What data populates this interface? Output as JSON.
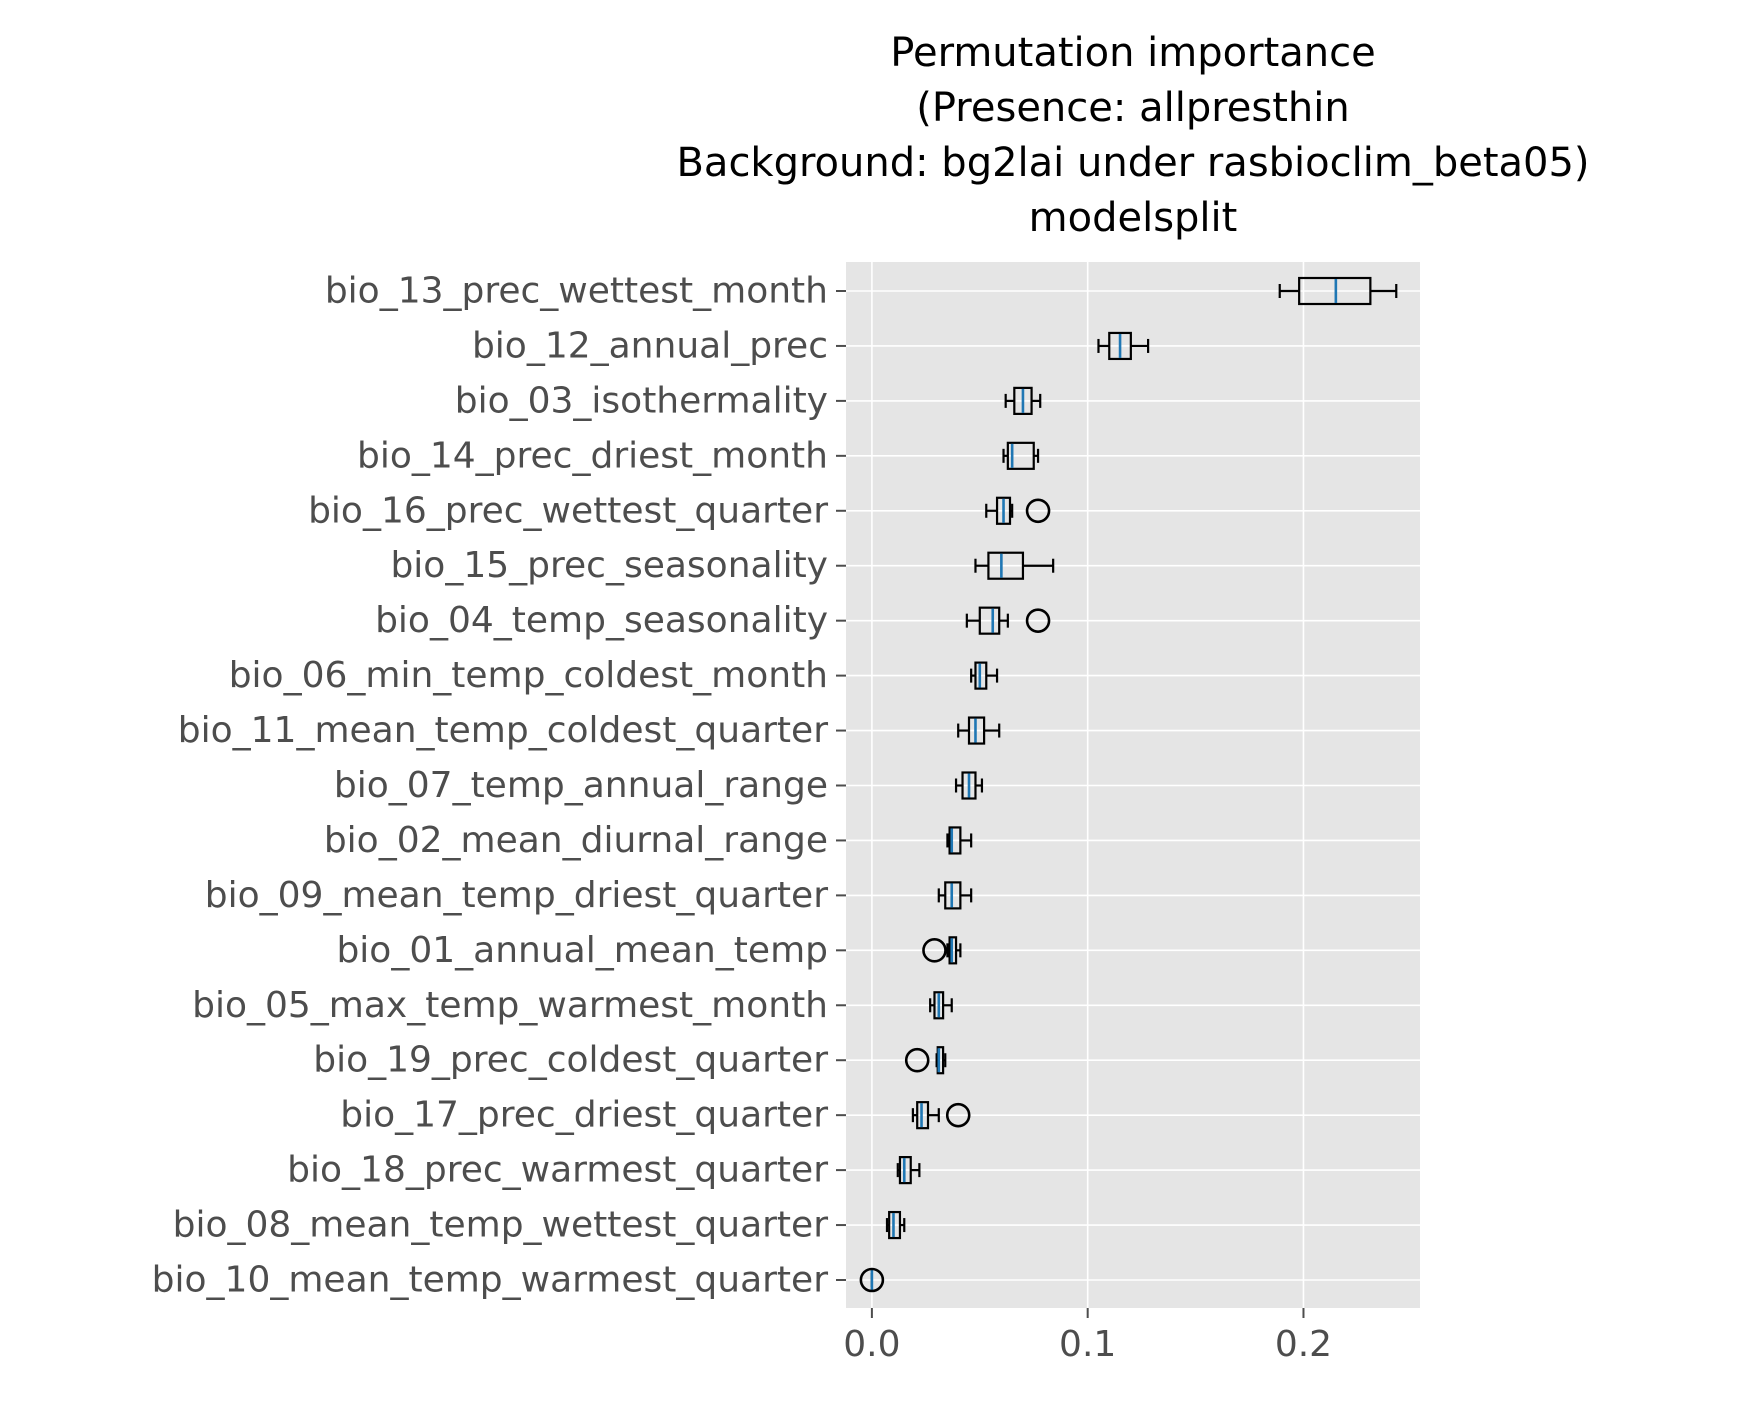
{
  "chart_data": {
    "type": "box",
    "orientation": "horizontal",
    "title": [
      "Permutation importance",
      "(Presence: allpresthin",
      "Background: bg2lai under rasbioclim_beta05)",
      "modelsplit"
    ],
    "xlabel": "",
    "ylabel": "",
    "xlim": [
      -0.012,
      0.254
    ],
    "xticks": [
      0.0,
      0.1,
      0.2
    ],
    "xtick_labels": [
      "0.0",
      "0.1",
      "0.2"
    ],
    "grid": true,
    "style": "ggplot",
    "colors": {
      "axes_background": "#e5e5e5",
      "grid": "#ffffff",
      "box_edge": "#000000",
      "median": "#1f77b4",
      "tick_label": "#4d4d4d"
    },
    "series": [
      {
        "name": "bio_13_prec_wettest_month",
        "whislo": 0.189,
        "q1": 0.198,
        "med": 0.215,
        "q3": 0.231,
        "whishi": 0.243,
        "fliers": []
      },
      {
        "name": "bio_12_annual_prec",
        "whislo": 0.105,
        "q1": 0.11,
        "med": 0.115,
        "q3": 0.12,
        "whishi": 0.128,
        "fliers": []
      },
      {
        "name": "bio_03_isothermality",
        "whislo": 0.062,
        "q1": 0.066,
        "med": 0.07,
        "q3": 0.074,
        "whishi": 0.078,
        "fliers": []
      },
      {
        "name": "bio_14_prec_driest_month",
        "whislo": 0.061,
        "q1": 0.063,
        "med": 0.065,
        "q3": 0.075,
        "whishi": 0.077,
        "fliers": []
      },
      {
        "name": "bio_16_prec_wettest_quarter",
        "whislo": 0.053,
        "q1": 0.058,
        "med": 0.061,
        "q3": 0.064,
        "whishi": 0.065,
        "fliers": [
          0.077
        ]
      },
      {
        "name": "bio_15_prec_seasonality",
        "whislo": 0.048,
        "q1": 0.054,
        "med": 0.06,
        "q3": 0.07,
        "whishi": 0.084,
        "fliers": []
      },
      {
        "name": "bio_04_temp_seasonality",
        "whislo": 0.044,
        "q1": 0.05,
        "med": 0.056,
        "q3": 0.059,
        "whishi": 0.063,
        "fliers": [
          0.077
        ]
      },
      {
        "name": "bio_06_min_temp_coldest_month",
        "whislo": 0.046,
        "q1": 0.048,
        "med": 0.05,
        "q3": 0.053,
        "whishi": 0.058,
        "fliers": []
      },
      {
        "name": "bio_11_mean_temp_coldest_quarter",
        "whislo": 0.04,
        "q1": 0.045,
        "med": 0.048,
        "q3": 0.052,
        "whishi": 0.059,
        "fliers": []
      },
      {
        "name": "bio_07_temp_annual_range",
        "whislo": 0.039,
        "q1": 0.042,
        "med": 0.045,
        "q3": 0.048,
        "whishi": 0.051,
        "fliers": []
      },
      {
        "name": "bio_02_mean_diurnal_range",
        "whislo": 0.035,
        "q1": 0.036,
        "med": 0.037,
        "q3": 0.041,
        "whishi": 0.046,
        "fliers": []
      },
      {
        "name": "bio_09_mean_temp_driest_quarter",
        "whislo": 0.031,
        "q1": 0.034,
        "med": 0.037,
        "q3": 0.041,
        "whishi": 0.046,
        "fliers": []
      },
      {
        "name": "bio_01_annual_mean_temp",
        "whislo": 0.035,
        "q1": 0.036,
        "med": 0.037,
        "q3": 0.039,
        "whishi": 0.041,
        "fliers": [
          0.029
        ]
      },
      {
        "name": "bio_05_max_temp_warmest_month",
        "whislo": 0.027,
        "q1": 0.029,
        "med": 0.031,
        "q3": 0.033,
        "whishi": 0.037,
        "fliers": []
      },
      {
        "name": "bio_19_prec_coldest_quarter",
        "whislo": 0.03,
        "q1": 0.0305,
        "med": 0.031,
        "q3": 0.033,
        "whishi": 0.034,
        "fliers": [
          0.021
        ]
      },
      {
        "name": "bio_17_prec_driest_quarter",
        "whislo": 0.019,
        "q1": 0.021,
        "med": 0.023,
        "q3": 0.026,
        "whishi": 0.031,
        "fliers": [
          0.04
        ]
      },
      {
        "name": "bio_18_prec_warmest_quarter",
        "whislo": 0.012,
        "q1": 0.013,
        "med": 0.015,
        "q3": 0.018,
        "whishi": 0.022,
        "fliers": []
      },
      {
        "name": "bio_08_mean_temp_wettest_quarter",
        "whislo": 0.007,
        "q1": 0.008,
        "med": 0.01,
        "q3": 0.013,
        "whishi": 0.015,
        "fliers": []
      },
      {
        "name": "bio_10_mean_temp_warmest_quarter",
        "whislo": 0.0,
        "q1": 0.0,
        "med": 0.0,
        "q3": 0.0,
        "whishi": 0.0,
        "fliers": [
          0.0
        ]
      }
    ]
  }
}
